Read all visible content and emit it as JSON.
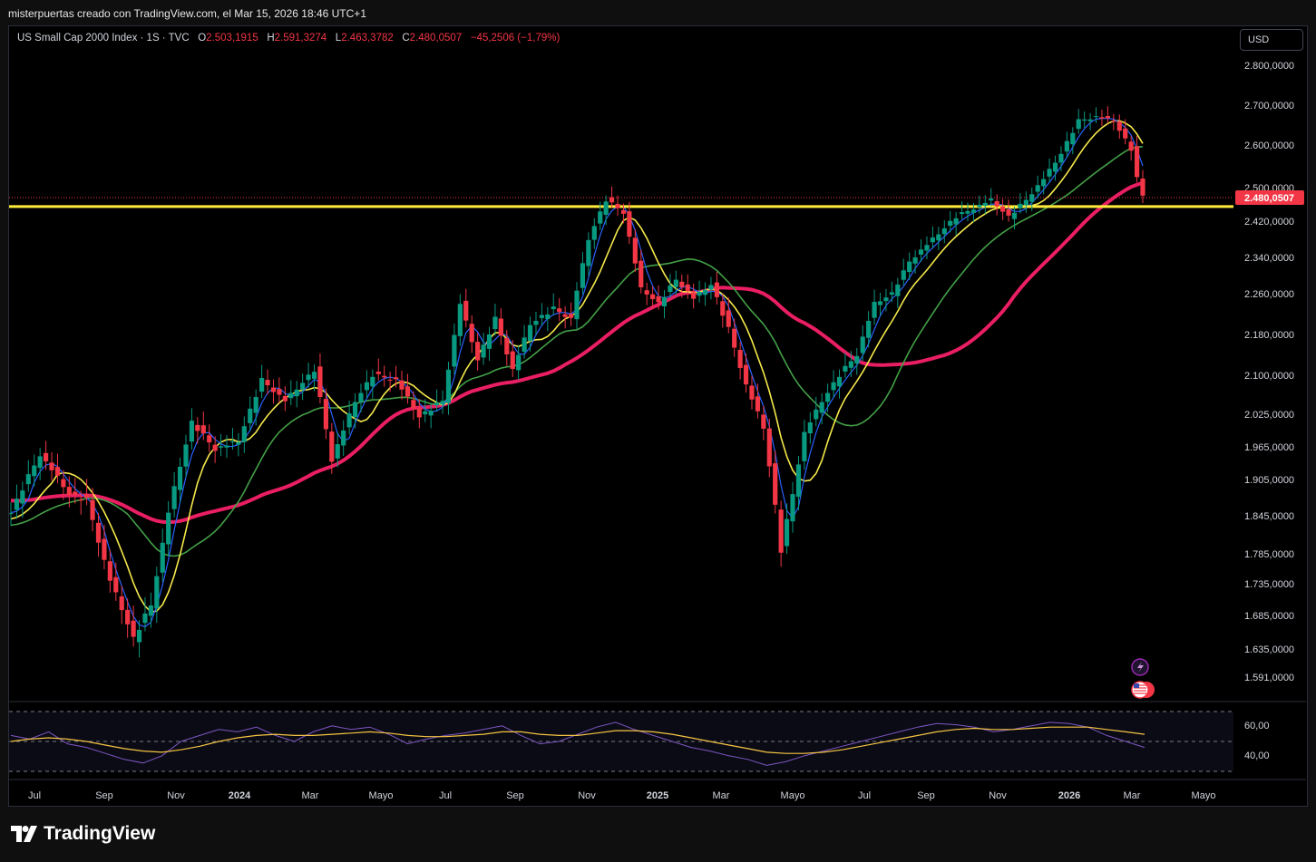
{
  "header": {
    "credit": "misterpuertas creado con TradingView.com, el Mar 15, 2026 18:46 UTC+1"
  },
  "legend": {
    "symbol": "US Small Cap 2000 Index · 1S · TVC",
    "open_label": "O",
    "open": "2.503,1915",
    "high_label": "H",
    "high": "2.591,3274",
    "low_label": "L",
    "low": "2.463,3782",
    "close_label": "C",
    "close": "2.480,0507",
    "change": "−45,2506 (−1,79%)"
  },
  "toolbar": {
    "currency": "USD"
  },
  "footer": {
    "brand": "TradingView"
  },
  "chart_data": [
    {
      "type": "candlestick",
      "symbol": "US Small Cap 2000 Index",
      "interval": "1S",
      "currency": "USD",
      "last_price_label": "2.480,0507",
      "y_ticks": [
        2800,
        2700,
        2600,
        2500,
        2420,
        2340,
        2260,
        2180,
        2100,
        2025,
        1965,
        1905,
        1845,
        1785,
        1735,
        1685,
        1635,
        1591
      ],
      "y_tick_labels": [
        "2.800,0000",
        "2.700,0000",
        "2.600,0000",
        "2.500,0000",
        "2.420,0000",
        "2.340,0000",
        "2.260,0000",
        "2.180,0000",
        "2.100,0000",
        "2.025,0000",
        "1.965,0000",
        "1.905,0000",
        "1.845,0000",
        "1.785,0000",
        "1.735,0000",
        "1.685,0000",
        "1.635,0000",
        "1.591,0000"
      ],
      "x_labels": [
        "Jul",
        "Sep",
        "Nov",
        "2024",
        "Mar",
        "Mayo",
        "Jul",
        "Sep",
        "Nov",
        "2025",
        "Mar",
        "Mayo",
        "Jul",
        "Sep",
        "Nov",
        "2026",
        "Mar",
        "Mayo"
      ],
      "horizontal_level": 2455,
      "series_colors": {
        "up": "#089981",
        "down": "#f23645",
        "ma_fast": "#2962ff",
        "ma_mid": "#f5e94b",
        "ma_slow": "#43a047",
        "ma_long": "#e91e63",
        "level": "#ffeb3b"
      },
      "close_keypoints": [
        [
          0,
          1850
        ],
        [
          5,
          1950
        ],
        [
          10,
          1880
        ],
        [
          13,
          1870
        ],
        [
          17,
          1740
        ],
        [
          21,
          1650
        ],
        [
          24,
          1700
        ],
        [
          27,
          1850
        ],
        [
          31,
          2010
        ],
        [
          35,
          1960
        ],
        [
          39,
          1975
        ],
        [
          43,
          2090
        ],
        [
          47,
          2050
        ],
        [
          52,
          2110
        ],
        [
          55,
          1940
        ],
        [
          59,
          2050
        ],
        [
          62,
          2100
        ],
        [
          66,
          2090
        ],
        [
          70,
          2020
        ],
        [
          74,
          2050
        ],
        [
          77,
          2240
        ],
        [
          80,
          2130
        ],
        [
          83,
          2210
        ],
        [
          86,
          2110
        ],
        [
          89,
          2200
        ],
        [
          93,
          2230
        ],
        [
          96,
          2210
        ],
        [
          99,
          2380
        ],
        [
          102,
          2470
        ],
        [
          105,
          2440
        ],
        [
          108,
          2270
        ],
        [
          111,
          2240
        ],
        [
          114,
          2290
        ],
        [
          117,
          2250
        ],
        [
          120,
          2280
        ],
        [
          123,
          2190
        ],
        [
          126,
          2080
        ],
        [
          129,
          2000
        ],
        [
          132,
          1790
        ],
        [
          134,
          1880
        ],
        [
          136,
          1990
        ],
        [
          139,
          2050
        ],
        [
          142,
          2100
        ],
        [
          145,
          2140
        ],
        [
          148,
          2240
        ],
        [
          151,
          2260
        ],
        [
          154,
          2330
        ],
        [
          158,
          2380
        ],
        [
          162,
          2430
        ],
        [
          165,
          2450
        ],
        [
          168,
          2470
        ],
        [
          171,
          2430
        ],
        [
          174,
          2470
        ],
        [
          177,
          2520
        ],
        [
          180,
          2580
        ],
        [
          183,
          2660
        ],
        [
          186,
          2670
        ],
        [
          189,
          2660
        ],
        [
          192,
          2590
        ],
        [
          193,
          2520
        ],
        [
          194,
          2480
        ]
      ],
      "volatility_seed": [
        0.45,
        0.7,
        0.3,
        0.8,
        0.55,
        0.35,
        0.65,
        0.5,
        0.75,
        0.4
      ]
    },
    {
      "type": "line",
      "name": "RSI panel",
      "y_tick_labels": [
        "60,00",
        "40,00"
      ],
      "series": [
        {
          "name": "rsi",
          "values": [
            55,
            52,
            58,
            48,
            45,
            40,
            35,
            32,
            38,
            50,
            55,
            60,
            58,
            62,
            55,
            50,
            58,
            63,
            60,
            62,
            56,
            48,
            52,
            55,
            57,
            60,
            63,
            55,
            48,
            50,
            56,
            62,
            66,
            60,
            55,
            50,
            45,
            42,
            38,
            35,
            30,
            33,
            38,
            42,
            46,
            50,
            54,
            58,
            62,
            65,
            64,
            62,
            58,
            60,
            63,
            66,
            65,
            62,
            55,
            50,
            45
          ]
        },
        {
          "name": "signal",
          "values": [
            50,
            52,
            53,
            52,
            50,
            47,
            44,
            42,
            41,
            43,
            46,
            50,
            53,
            55,
            56,
            55,
            55,
            56,
            57,
            58,
            57,
            55,
            54,
            54,
            55,
            56,
            58,
            58,
            56,
            55,
            55,
            57,
            59,
            59,
            58,
            56,
            53,
            50,
            47,
            44,
            41,
            40,
            40,
            41,
            43,
            46,
            49,
            52,
            55,
            58,
            60,
            61,
            60,
            60,
            61,
            62,
            62,
            62,
            60,
            58,
            56
          ]
        }
      ]
    }
  ]
}
